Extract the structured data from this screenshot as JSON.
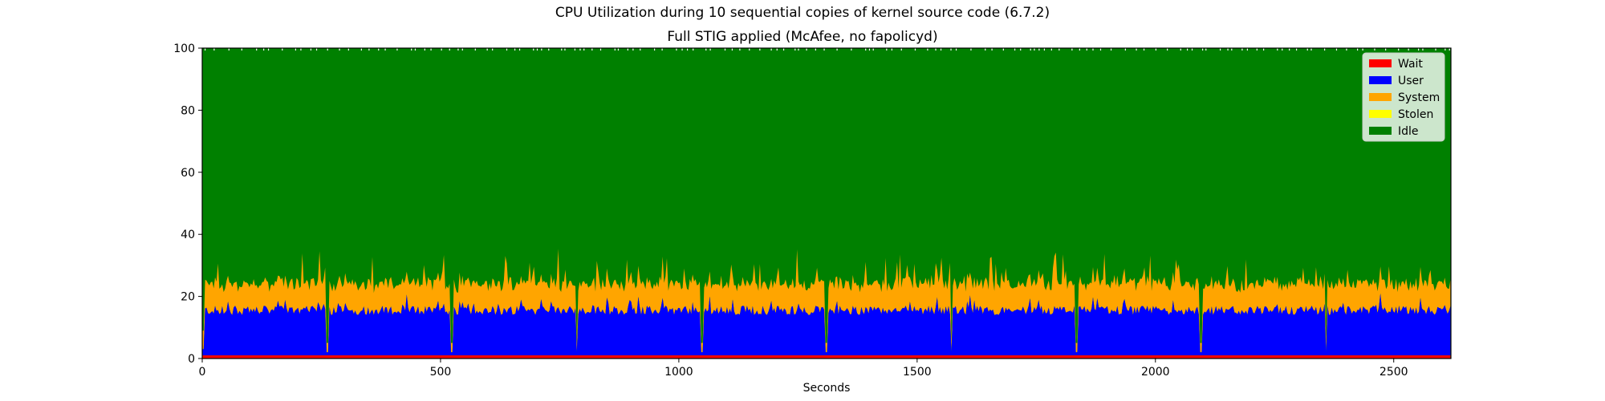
{
  "chart_data": {
    "type": "area",
    "stacked": true,
    "title": "CPU Utilization during 10 sequential copies of kernel source code (6.7.2)",
    "subtitle": "Full STIG applied (McAfee, no fapolicyd)",
    "xlabel": "Seconds",
    "ylabel": "",
    "xlim": [
      0,
      2620
    ],
    "ylim": [
      0,
      100
    ],
    "x_ticks": [
      0,
      500,
      1000,
      1500,
      2000,
      2500
    ],
    "y_ticks": [
      0,
      20,
      40,
      60,
      80,
      100
    ],
    "grid": false,
    "legend_position": "top-right",
    "copy_boundaries": [
      262,
      524,
      786,
      1048,
      1310,
      1572,
      1834,
      2096,
      2358
    ],
    "series": [
      {
        "name": "Wait",
        "color": "#ff0000",
        "typical": 1
      },
      {
        "name": "User",
        "color": "#0000ff",
        "typical": 14
      },
      {
        "name": "System",
        "color": "#ffa500",
        "typical": 8
      },
      {
        "name": "Stolen",
        "color": "#ffff00",
        "typical": 0
      },
      {
        "name": "Idle",
        "color": "#008000",
        "typical": 77
      }
    ]
  }
}
